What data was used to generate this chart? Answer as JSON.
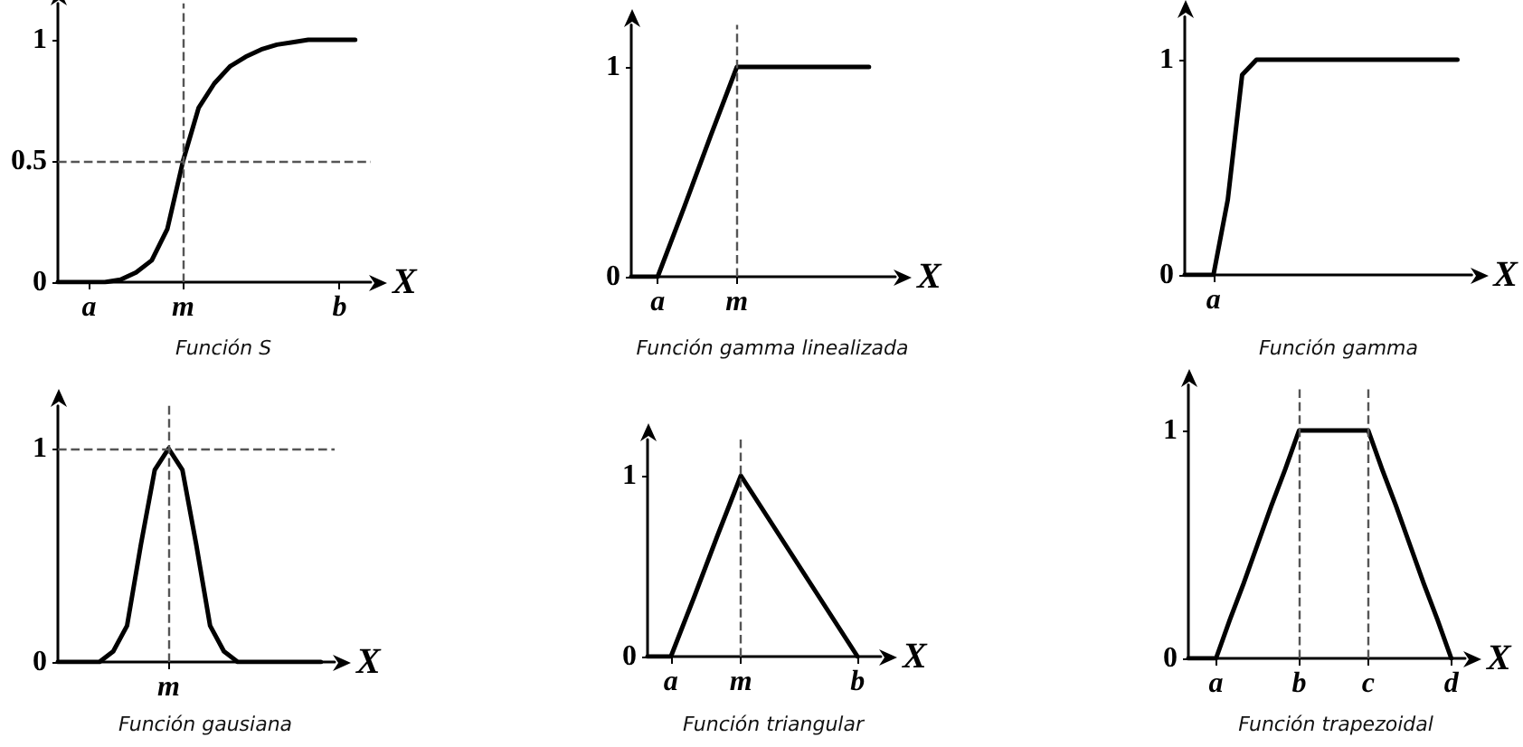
{
  "chart_data": [
    {
      "type": "line",
      "title": "Función S",
      "xlabel": "X",
      "categories": [
        null,
        null,
        "a",
        null,
        null,
        null,
        null,
        null,
        "m",
        null,
        null,
        null,
        null,
        null,
        null,
        null,
        null,
        null,
        "b",
        null,
        null
      ],
      "series": [
        {
          "color": "#000000",
          "values": [
            0,
            0,
            0,
            0,
            0.01,
            0.04,
            0.09,
            0.22,
            0.5,
            0.72,
            0.82,
            0.89,
            0.93,
            0.96,
            0.98,
            0.99,
            1,
            1,
            1,
            1,
            null
          ]
        }
      ],
      "ylim": [
        0,
        1.15
      ],
      "yticks": [
        0,
        0.5,
        1
      ],
      "ref_lines": [
        {
          "axis": "x",
          "value": "m",
          "line_style": "dashed"
        },
        {
          "axis": "y",
          "value": 0.5,
          "line_style": "dashed"
        }
      ],
      "marker": "none",
      "line_style": "solid",
      "grid": false
    },
    {
      "type": "line",
      "title": "Función gamma linealizada",
      "xlabel": "X",
      "categories": [
        null,
        "a",
        null,
        null,
        "m",
        null,
        null,
        null,
        null,
        null,
        null
      ],
      "series": [
        {
          "color": "#000000",
          "values": [
            0,
            0,
            0.33,
            0.67,
            1,
            1,
            1,
            1,
            1,
            1,
            null
          ]
        }
      ],
      "ylim": [
        0,
        1.2
      ],
      "yticks": [
        0,
        1
      ],
      "ref_lines": [
        {
          "axis": "x",
          "value": "m",
          "line_style": "dashed"
        }
      ],
      "marker": "none",
      "line_style": "solid",
      "grid": false
    },
    {
      "type": "line",
      "title": "Función gamma",
      "xlabel": "X",
      "categories": [
        null,
        null,
        "a",
        null,
        null,
        null,
        null,
        null,
        null,
        null,
        null,
        null,
        null,
        null,
        null,
        null,
        null,
        null,
        null,
        null,
        null
      ],
      "series": [
        {
          "color": "#000000",
          "values": [
            0,
            0,
            0,
            0.35,
            0.93,
            1,
            1,
            1,
            1,
            1,
            1,
            1,
            1,
            1,
            1,
            1,
            1,
            1,
            1,
            1,
            null
          ]
        }
      ],
      "ylim": [
        0,
        1.2
      ],
      "yticks": [
        0,
        1
      ],
      "marker": "none",
      "line_style": "solid",
      "grid": false
    },
    {
      "type": "line",
      "title": "Función gausiana",
      "xlabel": "X",
      "categories": [
        null,
        null,
        null,
        null,
        null,
        null,
        null,
        null,
        "m",
        null,
        null,
        null,
        null,
        null,
        null,
        null,
        null,
        null,
        null,
        null,
        null
      ],
      "series": [
        {
          "color": "#000000",
          "values": [
            0,
            0,
            0,
            0,
            0.05,
            0.17,
            0.55,
            0.9,
            1,
            0.9,
            0.55,
            0.17,
            0.05,
            0,
            0,
            0,
            0,
            0,
            0,
            0,
            null
          ]
        }
      ],
      "ylim": [
        0,
        1.2
      ],
      "yticks": [
        0,
        1
      ],
      "ref_lines": [
        {
          "axis": "x",
          "value": "m",
          "line_style": "dashed"
        },
        {
          "axis": "y",
          "value": 1,
          "line_style": "dashed"
        }
      ],
      "marker": "none",
      "line_style": "solid",
      "grid": false
    },
    {
      "type": "line",
      "title": "Función triangular",
      "xlabel": "X",
      "categories": [
        null,
        "a",
        null,
        null,
        "m",
        null,
        null,
        null,
        null,
        "b",
        null
      ],
      "series": [
        {
          "color": "#000000",
          "values": [
            0,
            0,
            0.33,
            0.67,
            1,
            0.8,
            0.6,
            0.4,
            0.2,
            0,
            null
          ]
        }
      ],
      "ylim": [
        0,
        1.2
      ],
      "yticks": [
        0,
        1
      ],
      "ref_lines": [
        {
          "axis": "x",
          "value": "m",
          "line_style": "dashed"
        }
      ],
      "marker": "none",
      "line_style": "solid",
      "grid": false
    },
    {
      "type": "line",
      "title": "Función trapezoidal",
      "xlabel": "X",
      "categories": [
        null,
        null,
        "a",
        null,
        null,
        null,
        null,
        null,
        "b",
        null,
        null,
        null,
        null,
        "c",
        null,
        null,
        null,
        null,
        null,
        "d",
        null
      ],
      "series": [
        {
          "color": "#000000",
          "values": [
            0,
            0,
            0,
            0.17,
            0.33,
            0.5,
            0.67,
            0.83,
            1,
            1,
            1,
            1,
            1,
            1,
            0.83,
            0.67,
            0.5,
            0.33,
            0.17,
            0,
            null
          ]
        }
      ],
      "ylim": [
        0,
        1.2
      ],
      "yticks": [
        0,
        1
      ],
      "ref_lines": [
        {
          "axis": "x",
          "value": "b",
          "line_style": "dashed"
        },
        {
          "axis": "x",
          "value": "c",
          "line_style": "dashed"
        }
      ],
      "marker": "none",
      "line_style": "solid",
      "grid": false
    }
  ]
}
